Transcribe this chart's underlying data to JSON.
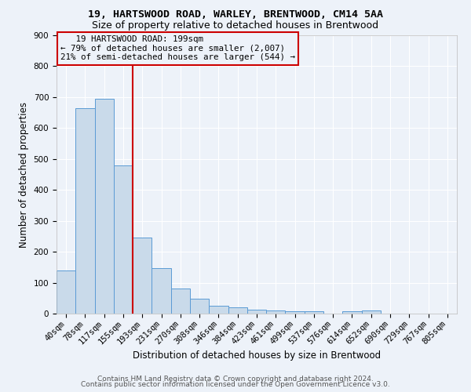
{
  "title1": "19, HARTSWOOD ROAD, WARLEY, BRENTWOOD, CM14 5AA",
  "title2": "Size of property relative to detached houses in Brentwood",
  "xlabel": "Distribution of detached houses by size in Brentwood",
  "ylabel": "Number of detached properties",
  "categories": [
    "40sqm",
    "78sqm",
    "117sqm",
    "155sqm",
    "193sqm",
    "231sqm",
    "270sqm",
    "308sqm",
    "346sqm",
    "384sqm",
    "423sqm",
    "461sqm",
    "499sqm",
    "537sqm",
    "576sqm",
    "614sqm",
    "652sqm",
    "690sqm",
    "729sqm",
    "767sqm",
    "805sqm"
  ],
  "values": [
    140,
    665,
    695,
    480,
    245,
    148,
    82,
    48,
    25,
    20,
    12,
    10,
    8,
    7,
    0,
    8,
    10,
    0,
    0,
    0,
    0
  ],
  "bar_color": "#c9daea",
  "bar_edge_color": "#5b9bd5",
  "vline_color": "#cc0000",
  "vline_pos": 3.5,
  "annotation_line1": "   19 HARTSWOOD ROAD: 199sqm",
  "annotation_line2": "← 79% of detached houses are smaller (2,007)",
  "annotation_line3": "21% of semi-detached houses are larger (544) →",
  "annotation_box_color": "#cc0000",
  "ylim": [
    0,
    900
  ],
  "yticks": [
    0,
    100,
    200,
    300,
    400,
    500,
    600,
    700,
    800,
    900
  ],
  "footer1": "Contains HM Land Registry data © Crown copyright and database right 2024.",
  "footer2": "Contains public sector information licensed under the Open Government Licence v3.0.",
  "bg_color": "#edf2f9",
  "grid_color": "#ffffff",
  "title_fontsize": 9.5,
  "subtitle_fontsize": 9,
  "axis_label_fontsize": 8.5,
  "tick_fontsize": 7.5,
  "footer_fontsize": 6.5
}
